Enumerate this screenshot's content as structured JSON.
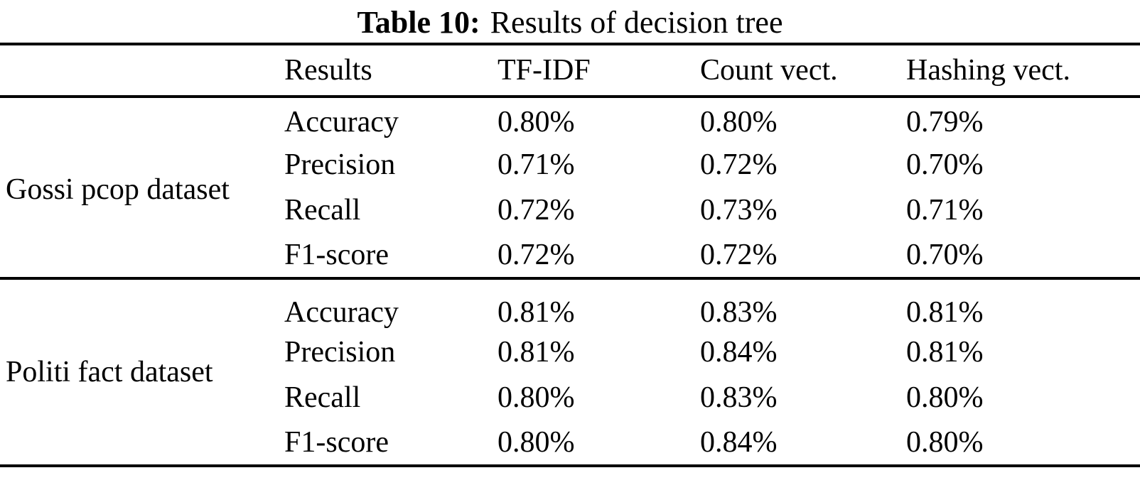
{
  "title": {
    "label": "Table 10:",
    "text": "Results of decision tree"
  },
  "table": {
    "columns": [
      "Results",
      "TF-IDF",
      "Count vect.",
      "Hashing vect."
    ],
    "groups": [
      {
        "dataset": "Gossi pcop dataset",
        "rows": [
          {
            "metric": "Accuracy",
            "values": [
              "0.80%",
              "0.80%",
              "0.79%"
            ]
          },
          {
            "metric": "Precision",
            "values": [
              "0.71%",
              "0.72%",
              "0.70%"
            ]
          },
          {
            "metric": "Recall",
            "values": [
              "0.72%",
              "0.73%",
              "0.71%"
            ]
          },
          {
            "metric": "F1-score",
            "values": [
              "0.72%",
              "0.72%",
              "0.70%"
            ]
          }
        ]
      },
      {
        "dataset": "Politi fact dataset",
        "rows": [
          {
            "metric": "Accuracy",
            "values": [
              "0.81%",
              "0.83%",
              "0.81%"
            ]
          },
          {
            "metric": "Precision",
            "values": [
              "0.81%",
              "0.84%",
              "0.81%"
            ]
          },
          {
            "metric": "Recall",
            "values": [
              "0.80%",
              "0.83%",
              "0.80%"
            ]
          },
          {
            "metric": "F1-score",
            "values": [
              "0.80%",
              "0.84%",
              "0.80%"
            ]
          }
        ]
      }
    ]
  },
  "colors": {
    "text": "#000000",
    "background": "#ffffff",
    "rule": "#000000"
  }
}
